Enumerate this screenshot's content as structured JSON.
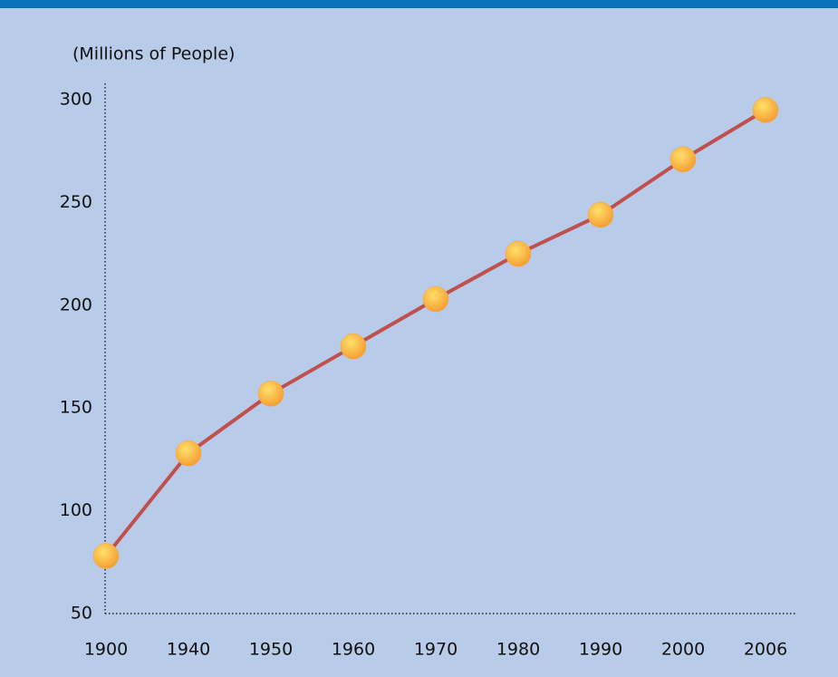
{
  "chart_data": {
    "type": "line",
    "axis_title": "(Millions of People)",
    "categories": [
      "1900",
      "1940",
      "1950",
      "1960",
      "1970",
      "1980",
      "1990",
      "2000",
      "2006"
    ],
    "values": [
      78,
      128,
      157,
      180,
      203,
      225,
      244,
      271,
      295
    ],
    "color": "#c0504d",
    "marker_color": "#f9a43a",
    "ylim": [
      50,
      300
    ],
    "yticks": [
      50,
      100,
      150,
      200,
      250,
      300
    ],
    "grid": false
  }
}
